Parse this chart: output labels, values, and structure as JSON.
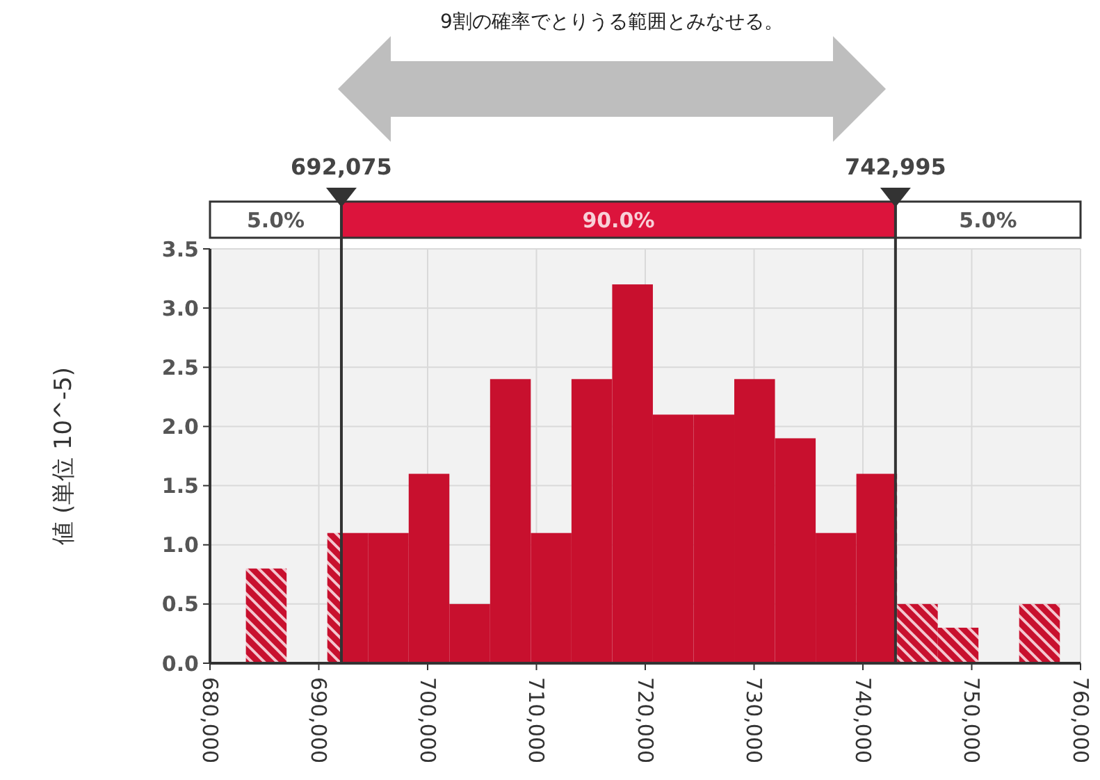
{
  "chart_data": {
    "type": "histogram",
    "ylabel": "値 (単位 10^-5)",
    "annotations": [
      "9割の確率でとりうる範囲とみなせる。",
      "5.0%",
      "90.0%",
      "5.0%"
    ],
    "bins": [
      683300,
      687040,
      690780,
      694520,
      698260,
      702000,
      705740,
      709480,
      713220,
      716960,
      720700,
      724440,
      728180,
      731920,
      735660,
      739400,
      743140,
      746880,
      750620,
      754360,
      758100
    ],
    "values": [
      0.8,
      0,
      1.1,
      1.1,
      1.6,
      0.5,
      2.4,
      1.1,
      2.4,
      3.2,
      2.1,
      2.1,
      2.4,
      1.9,
      1.1,
      1.6,
      0.5,
      0.3,
      0,
      0.5
    ],
    "color": "#c8102e",
    "xlim": [
      680000,
      760000
    ],
    "xticks": [
      {
        "value": 680000,
        "label": "680,000"
      },
      {
        "value": 690000,
        "label": "690,000"
      },
      {
        "value": 700000,
        "label": "700,000"
      },
      {
        "value": 710000,
        "label": "710,000"
      },
      {
        "value": 720000,
        "label": "720,000"
      },
      {
        "value": 730000,
        "label": "730,000"
      },
      {
        "value": 740000,
        "label": "740,000"
      },
      {
        "value": 750000,
        "label": "750,000"
      },
      {
        "value": 760000,
        "label": "760,000"
      }
    ],
    "ylim": [
      0,
      3.5
    ],
    "yticks": [
      {
        "value": 0,
        "label": "0.0"
      },
      {
        "value": 0.5,
        "label": "0.5"
      },
      {
        "value": 1,
        "label": "1.0"
      },
      {
        "value": 1.5,
        "label": "1.5"
      },
      {
        "value": 2,
        "label": "2.0"
      },
      {
        "value": 2.5,
        "label": "2.5"
      },
      {
        "value": 3,
        "label": "3.0"
      },
      {
        "value": 3.5,
        "label": "3.5"
      }
    ],
    "grid": true,
    "ref_lines": [
      {
        "axis": "x",
        "value": 692075,
        "label": "692,075"
      },
      {
        "axis": "x",
        "value": 742995,
        "label": "742,995"
      }
    ]
  }
}
